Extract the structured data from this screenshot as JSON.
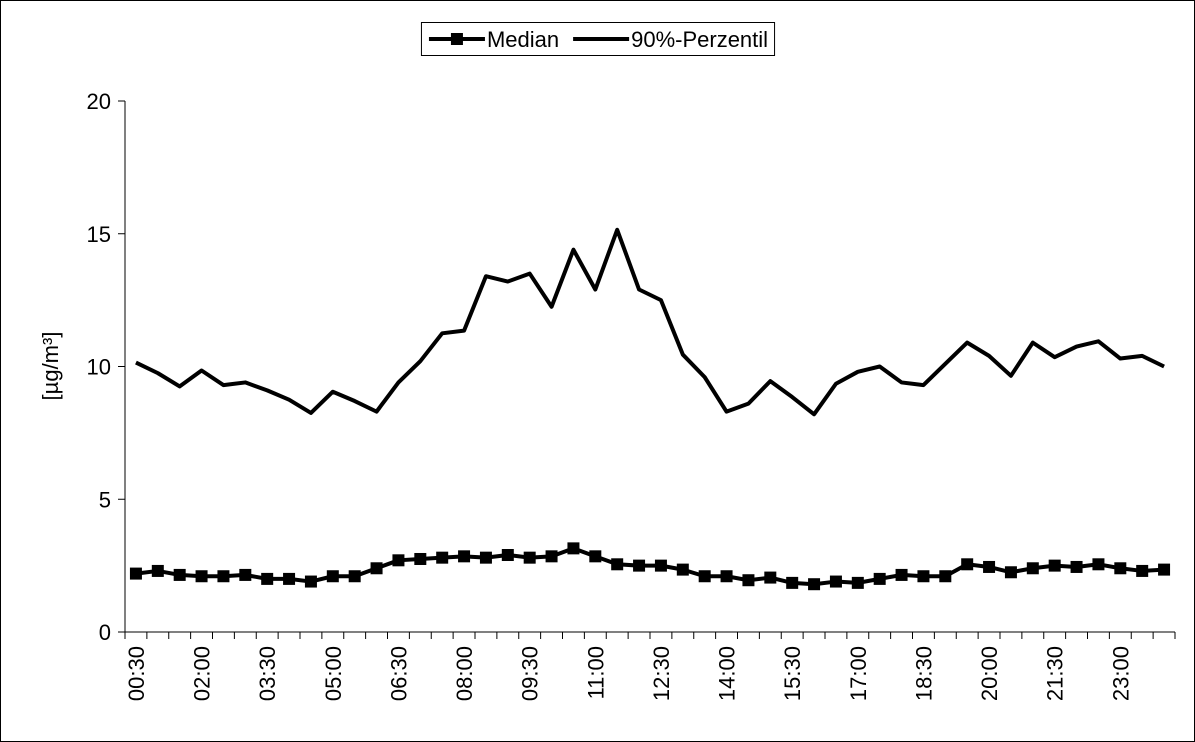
{
  "chart_data": {
    "type": "line",
    "y_label": "[µg/m³]",
    "categories": [
      "00:30",
      null,
      null,
      "02:00",
      null,
      null,
      "03:30",
      null,
      null,
      "05:00",
      null,
      null,
      "06:30",
      null,
      null,
      "08:00",
      null,
      null,
      "09:30",
      null,
      null,
      "11:00",
      null,
      null,
      "12:30",
      null,
      null,
      "14:00",
      null,
      null,
      "15:30",
      null,
      null,
      "17:00",
      null,
      null,
      "18:30",
      null,
      null,
      "20:00",
      null,
      null,
      "21:30",
      null,
      null,
      "23:00",
      null,
      null
    ],
    "series": [
      {
        "name": "Median",
        "color": "#000000",
        "marker": "square",
        "values": [
          2.2,
          2.3,
          2.15,
          2.1,
          2.1,
          2.15,
          2.0,
          2.0,
          1.9,
          2.1,
          2.1,
          2.4,
          2.7,
          2.75,
          2.8,
          2.85,
          2.8,
          2.9,
          2.8,
          2.85,
          3.15,
          2.85,
          2.55,
          2.5,
          2.5,
          2.35,
          2.1,
          2.1,
          1.95,
          2.05,
          1.85,
          1.8,
          1.9,
          1.85,
          2.0,
          2.15,
          2.1,
          2.1,
          2.55,
          2.45,
          2.25,
          2.4,
          2.5,
          2.45,
          2.55,
          2.4,
          2.3,
          2.35
        ]
      },
      {
        "name": "90%-Perzentil",
        "color": "#000000",
        "values": [
          10.15,
          9.75,
          9.25,
          9.85,
          9.3,
          9.4,
          9.1,
          8.75,
          8.25,
          9.05,
          8.7,
          8.3,
          9.4,
          10.2,
          11.25,
          11.35,
          13.4,
          13.2,
          13.5,
          12.25,
          14.4,
          12.9,
          15.15,
          12.9,
          12.5,
          10.45,
          9.6,
          8.3,
          8.6,
          9.45,
          8.85,
          8.2,
          9.35,
          9.8,
          10.0,
          9.4,
          9.3,
          10.1,
          10.9,
          10.4,
          9.65,
          10.9,
          10.35,
          10.75,
          10.95,
          10.3,
          10.4,
          10.0
        ]
      }
    ],
    "ylim": [
      0,
      20
    ],
    "yticks": [
      0,
      5,
      10,
      15,
      20
    ],
    "grid": false,
    "legend": "top"
  }
}
